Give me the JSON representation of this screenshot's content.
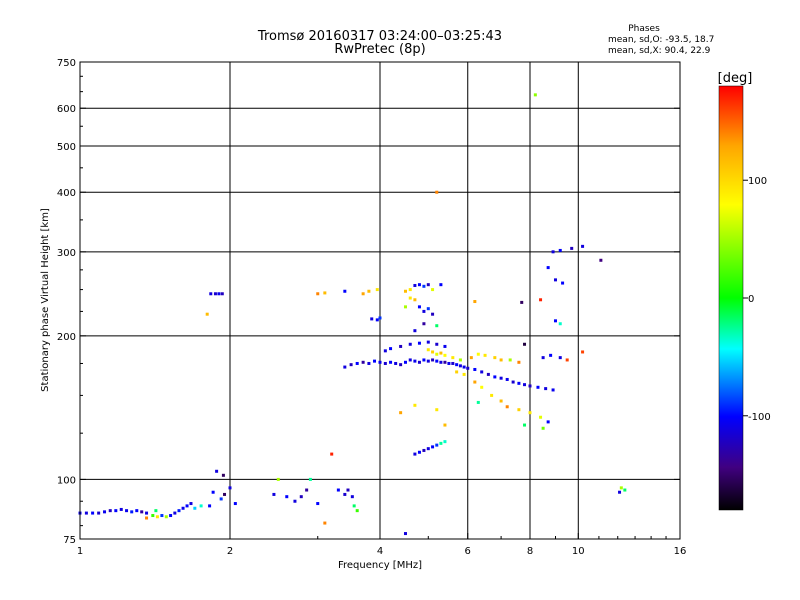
{
  "chart_data": {
    "type": "scatter",
    "title": "Tromsø 20160317 03:24:00–03:25:43",
    "subtitle": "RwPretec (8p)",
    "xlabel": "Frequency [MHz]",
    "ylabel": "Stationary phase Virtual Height [km]",
    "xscale": "log",
    "yscale": "log",
    "xlim": [
      1,
      16
    ],
    "ylim": [
      75,
      750
    ],
    "x_ticks": [
      1,
      2,
      4,
      6,
      8,
      10,
      16
    ],
    "y_ticks": [
      75,
      100,
      200,
      300,
      400,
      500,
      600,
      750
    ],
    "x_gridlines": [
      2,
      4,
      6,
      8,
      10
    ],
    "y_gridlines": [
      100,
      200,
      300,
      400,
      500,
      600
    ],
    "grid": true,
    "stats": {
      "heading": "Phases",
      "line_o": "mean, sd,O: -93.5, 18.7",
      "line_x": "mean, sd,X:  90.4, 22.9"
    },
    "colorbar": {
      "label": "[deg]",
      "range": [
        -180,
        180
      ],
      "ticks": [
        100,
        0,
        -100
      ],
      "colors": [
        "#ff0000",
        "#ffa500",
        "#ffff00",
        "#00ff00",
        "#00ffff",
        "#0000ff",
        "#400080",
        "#000000"
      ]
    },
    "series": [
      {
        "points": [
          [
            1.0,
            85,
            -105
          ],
          [
            1.03,
            85,
            -110
          ],
          [
            1.06,
            85,
            -100
          ],
          [
            1.09,
            85,
            -115
          ],
          [
            1.12,
            85.5,
            -105
          ],
          [
            1.15,
            86,
            -120
          ],
          [
            1.18,
            86,
            -100
          ],
          [
            1.21,
            86.5,
            -110
          ],
          [
            1.24,
            86,
            -105
          ],
          [
            1.27,
            85.5,
            -95
          ],
          [
            1.3,
            86,
            -100
          ],
          [
            1.33,
            85.5,
            -130
          ],
          [
            1.36,
            85,
            -110
          ],
          [
            1.4,
            84,
            20
          ],
          [
            1.43,
            83.5,
            100
          ],
          [
            1.46,
            84,
            -90
          ],
          [
            1.49,
            83.5,
            60
          ],
          [
            1.52,
            84,
            -100
          ],
          [
            1.55,
            85,
            -110
          ],
          [
            1.58,
            86,
            -95
          ],
          [
            1.61,
            87,
            -105
          ],
          [
            1.64,
            88,
            -100
          ],
          [
            1.67,
            89,
            -110
          ],
          [
            1.7,
            87,
            -60
          ],
          [
            1.75,
            88,
            -40
          ],
          [
            1.36,
            83,
            140
          ],
          [
            1.42,
            86,
            -20
          ],
          [
            1.83,
            245,
            -110
          ],
          [
            1.87,
            245,
            -115
          ],
          [
            1.9,
            245,
            -105
          ],
          [
            1.93,
            245,
            -120
          ],
          [
            1.8,
            222,
            120
          ],
          [
            1.85,
            94,
            -100
          ],
          [
            1.92,
            91,
            -90
          ],
          [
            1.95,
            93,
            -150
          ],
          [
            2.0,
            96,
            -110
          ],
          [
            2.05,
            89,
            -100
          ],
          [
            1.88,
            104,
            -110
          ],
          [
            1.94,
            102,
            -150
          ],
          [
            1.82,
            88,
            -100
          ],
          [
            2.5,
            100,
            60
          ],
          [
            2.6,
            92,
            -100
          ],
          [
            2.7,
            90,
            -110
          ],
          [
            2.85,
            95,
            -130
          ],
          [
            3.0,
            89,
            -100
          ],
          [
            2.9,
            100,
            -30
          ],
          [
            2.78,
            92,
            -120
          ],
          [
            2.45,
            93,
            -110
          ],
          [
            3.1,
            81,
            140
          ],
          [
            3.3,
            95,
            -100
          ],
          [
            3.4,
            93,
            -115
          ],
          [
            3.45,
            95,
            -120
          ],
          [
            3.55,
            88,
            -20
          ],
          [
            3.6,
            86,
            20
          ],
          [
            3.52,
            92,
            -110
          ],
          [
            3.2,
            113,
            170
          ],
          [
            3.0,
            245,
            140
          ],
          [
            3.1,
            246,
            120
          ],
          [
            3.4,
            248,
            -100
          ],
          [
            3.7,
            245,
            130
          ],
          [
            3.8,
            248,
            120
          ],
          [
            3.95,
            250,
            100
          ],
          [
            3.85,
            217,
            -110
          ],
          [
            3.95,
            216,
            -100
          ],
          [
            4.0,
            218,
            -90
          ],
          [
            4.5,
            248,
            120
          ],
          [
            4.6,
            250,
            100
          ],
          [
            4.7,
            255,
            -110
          ],
          [
            4.8,
            256,
            -100
          ],
          [
            4.9,
            254,
            -90
          ],
          [
            5.0,
            256,
            -120
          ],
          [
            5.1,
            250,
            80
          ],
          [
            5.3,
            256,
            -100
          ],
          [
            4.6,
            240,
            100
          ],
          [
            4.7,
            238,
            120
          ],
          [
            4.8,
            230,
            -100
          ],
          [
            4.9,
            225,
            -110
          ],
          [
            5.0,
            228,
            -90
          ],
          [
            5.1,
            222,
            -120
          ],
          [
            4.5,
            230,
            60
          ],
          [
            5.2,
            210,
            -20
          ],
          [
            5.2,
            400,
            140
          ],
          [
            4.7,
            205,
            -110
          ],
          [
            4.9,
            212,
            -130
          ],
          [
            3.4,
            172,
            -110
          ],
          [
            3.5,
            174,
            -120
          ],
          [
            3.6,
            175,
            -100
          ],
          [
            3.7,
            176,
            -130
          ],
          [
            3.8,
            175,
            -110
          ],
          [
            3.9,
            177,
            -100
          ],
          [
            4.0,
            176,
            -105
          ],
          [
            4.1,
            175,
            -115
          ],
          [
            4.2,
            176,
            -100
          ],
          [
            4.3,
            175,
            -110
          ],
          [
            4.4,
            174,
            -120
          ],
          [
            4.5,
            176,
            -100
          ],
          [
            4.6,
            178,
            -110
          ],
          [
            4.7,
            177,
            -105
          ],
          [
            4.8,
            176,
            -115
          ],
          [
            4.9,
            178,
            -100
          ],
          [
            5.0,
            177,
            -110
          ],
          [
            5.1,
            178,
            -120
          ],
          [
            5.2,
            177,
            -100
          ],
          [
            5.3,
            176,
            -110
          ],
          [
            5.4,
            176,
            -130
          ],
          [
            5.5,
            175,
            -105
          ],
          [
            5.6,
            175,
            -115
          ],
          [
            5.7,
            174,
            -100
          ],
          [
            5.8,
            173,
            -110
          ],
          [
            5.9,
            172,
            -105
          ],
          [
            6.0,
            171,
            -115
          ],
          [
            6.2,
            170,
            -100
          ],
          [
            6.4,
            168,
            -110
          ],
          [
            6.6,
            166,
            -120
          ],
          [
            6.8,
            164,
            -100
          ],
          [
            7.0,
            163,
            -110
          ],
          [
            7.2,
            162,
            -105
          ],
          [
            7.4,
            160,
            -115
          ],
          [
            7.6,
            159,
            -100
          ],
          [
            7.8,
            158,
            -110
          ],
          [
            8.0,
            157,
            -120
          ],
          [
            8.3,
            156,
            -100
          ],
          [
            8.6,
            155,
            -110
          ],
          [
            8.9,
            154,
            -105
          ],
          [
            4.1,
            186,
            -110
          ],
          [
            4.2,
            188,
            -100
          ],
          [
            4.4,
            190,
            -120
          ],
          [
            4.6,
            192,
            -110
          ],
          [
            4.8,
            193,
            -100
          ],
          [
            5.0,
            194,
            -110
          ],
          [
            5.2,
            192,
            -115
          ],
          [
            5.4,
            190,
            -105
          ],
          [
            5.0,
            187,
            100
          ],
          [
            5.1,
            185,
            110
          ],
          [
            5.2,
            183,
            80
          ],
          [
            5.3,
            184,
            120
          ],
          [
            5.4,
            182,
            90
          ],
          [
            5.6,
            180,
            100
          ],
          [
            5.8,
            178,
            60
          ],
          [
            6.1,
            180,
            130
          ],
          [
            6.3,
            183,
            90
          ],
          [
            6.5,
            182,
            100
          ],
          [
            6.8,
            180,
            110
          ],
          [
            7.0,
            178,
            120
          ],
          [
            7.3,
            178,
            60
          ],
          [
            7.6,
            176,
            140
          ],
          [
            8.5,
            180,
            -110
          ],
          [
            8.8,
            182,
            -100
          ],
          [
            9.2,
            180,
            -110
          ],
          [
            9.5,
            178,
            160
          ],
          [
            5.7,
            168,
            110
          ],
          [
            5.9,
            166,
            100
          ],
          [
            6.2,
            160,
            130
          ],
          [
            6.4,
            156,
            90
          ],
          [
            6.7,
            150,
            100
          ],
          [
            7.0,
            146,
            120
          ],
          [
            7.2,
            142,
            140
          ],
          [
            7.6,
            140,
            110
          ],
          [
            8.0,
            138,
            100
          ],
          [
            8.4,
            135,
            80
          ],
          [
            8.7,
            132,
            -100
          ],
          [
            6.3,
            145,
            -30
          ],
          [
            5.2,
            140,
            100
          ],
          [
            4.4,
            138,
            130
          ],
          [
            4.7,
            143,
            100
          ],
          [
            5.4,
            130,
            120
          ],
          [
            7.8,
            130,
            -20
          ],
          [
            8.5,
            128,
            40
          ],
          [
            4.7,
            113,
            -110
          ],
          [
            4.8,
            114,
            -100
          ],
          [
            4.9,
            115,
            -120
          ],
          [
            5.0,
            116,
            -110
          ],
          [
            5.1,
            117,
            -100
          ],
          [
            5.2,
            118,
            -90
          ],
          [
            5.3,
            119,
            -30
          ],
          [
            5.4,
            120,
            -40
          ],
          [
            8.9,
            300,
            -110
          ],
          [
            9.2,
            302,
            -100
          ],
          [
            9.7,
            305,
            -120
          ],
          [
            10.2,
            308,
            -110
          ],
          [
            11.1,
            288,
            -140
          ],
          [
            9.0,
            262,
            -110
          ],
          [
            9.3,
            258,
            -100
          ],
          [
            8.7,
            278,
            -100
          ],
          [
            9.0,
            215,
            -100
          ],
          [
            9.2,
            212,
            -40
          ],
          [
            8.2,
            640,
            50
          ],
          [
            7.7,
            235,
            -150
          ],
          [
            8.4,
            238,
            170
          ],
          [
            7.8,
            192,
            -160
          ],
          [
            6.2,
            236,
            130
          ],
          [
            10.2,
            185,
            160
          ],
          [
            12.2,
            96,
            60
          ],
          [
            12.4,
            95,
            -20
          ],
          [
            12.1,
            94,
            -110
          ],
          [
            4.5,
            77,
            -110
          ]
        ]
      }
    ]
  }
}
